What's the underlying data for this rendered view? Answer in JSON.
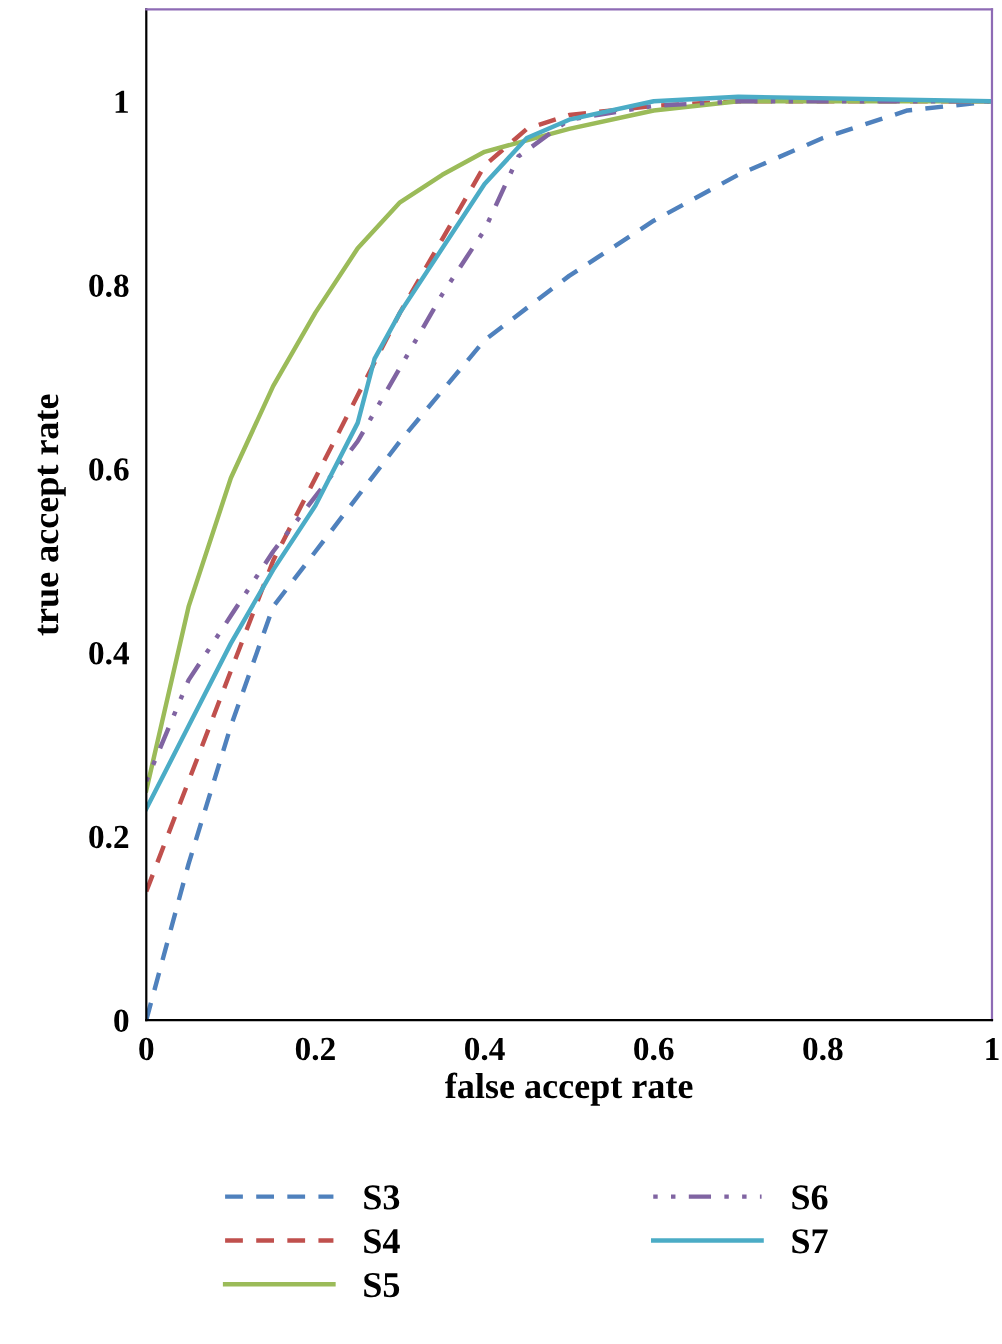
{
  "chart_data": {
    "type": "line",
    "xlabel": "false accept rate",
    "ylabel": "true accept rate",
    "xlim": [
      0,
      1
    ],
    "ylim": [
      0,
      1.1
    ],
    "xticks": [
      0,
      {
        "value": 0.2,
        "label": "0.2"
      },
      {
        "value": 0.4,
        "label": "0.4"
      },
      {
        "value": 0.6,
        "label": "0.6"
      },
      {
        "value": 0.8,
        "label": "0.8"
      },
      1
    ],
    "yticks": [
      0,
      {
        "value": 0.2,
        "label": "0.2"
      },
      {
        "value": 0.4,
        "label": "0.4"
      },
      {
        "value": 0.6,
        "label": "0.6"
      },
      {
        "value": 0.8,
        "label": "0.8"
      },
      1
    ],
    "grid": false,
    "legend": "bottom",
    "marker": "none",
    "series": [
      {
        "name": "S3",
        "color": "#4f81bd",
        "line_style": "dashed",
        "x": [
          0,
          0.05,
          0.1,
          0.15,
          0.2,
          0.3,
          0.4,
          0.5,
          0.6,
          0.7,
          0.8,
          0.9,
          1
        ],
        "values": [
          0,
          0.17,
          0.32,
          0.45,
          0.51,
          0.63,
          0.74,
          0.81,
          0.87,
          0.92,
          0.96,
          0.99,
          1
        ]
      },
      {
        "name": "S4",
        "color": "#c0504d",
        "line_style": "dashed",
        "x": [
          0,
          0.05,
          0.1,
          0.15,
          0.2,
          0.25,
          0.3,
          0.35,
          0.4,
          0.45,
          0.5,
          0.6,
          0.7,
          1
        ],
        "values": [
          0.14,
          0.26,
          0.38,
          0.5,
          0.59,
          0.68,
          0.77,
          0.85,
          0.93,
          0.97,
          0.985,
          0.995,
          1,
          1
        ]
      },
      {
        "name": "S5",
        "color": "#9bbb59",
        "line_style": "solid",
        "x": [
          0,
          0.05,
          0.1,
          0.15,
          0.2,
          0.25,
          0.3,
          0.35,
          0.4,
          0.5,
          0.6,
          0.7,
          1
        ],
        "values": [
          0.25,
          0.45,
          0.59,
          0.69,
          0.77,
          0.84,
          0.89,
          0.92,
          0.945,
          0.97,
          0.99,
          1,
          1
        ]
      },
      {
        "name": "S6",
        "color": "#8064a2",
        "line_style": "dotted",
        "x": [
          0,
          0.05,
          0.1,
          0.15,
          0.2,
          0.25,
          0.3,
          0.35,
          0.4,
          0.44,
          0.5,
          0.6,
          0.7,
          1
        ],
        "values": [
          0.26,
          0.37,
          0.44,
          0.51,
          0.57,
          0.63,
          0.71,
          0.79,
          0.86,
          0.94,
          0.98,
          0.995,
          1,
          1
        ]
      },
      {
        "name": "S7",
        "color": "#4bacc6",
        "line_style": "solid",
        "x": [
          0,
          0.05,
          0.1,
          0.15,
          0.2,
          0.25,
          0.27,
          0.3,
          0.35,
          0.4,
          0.45,
          0.5,
          0.6,
          0.7,
          1
        ],
        "values": [
          0.23,
          0.32,
          0.41,
          0.49,
          0.56,
          0.65,
          0.72,
          0.77,
          0.84,
          0.91,
          0.96,
          0.98,
          1,
          1.005,
          1
        ]
      }
    ]
  }
}
